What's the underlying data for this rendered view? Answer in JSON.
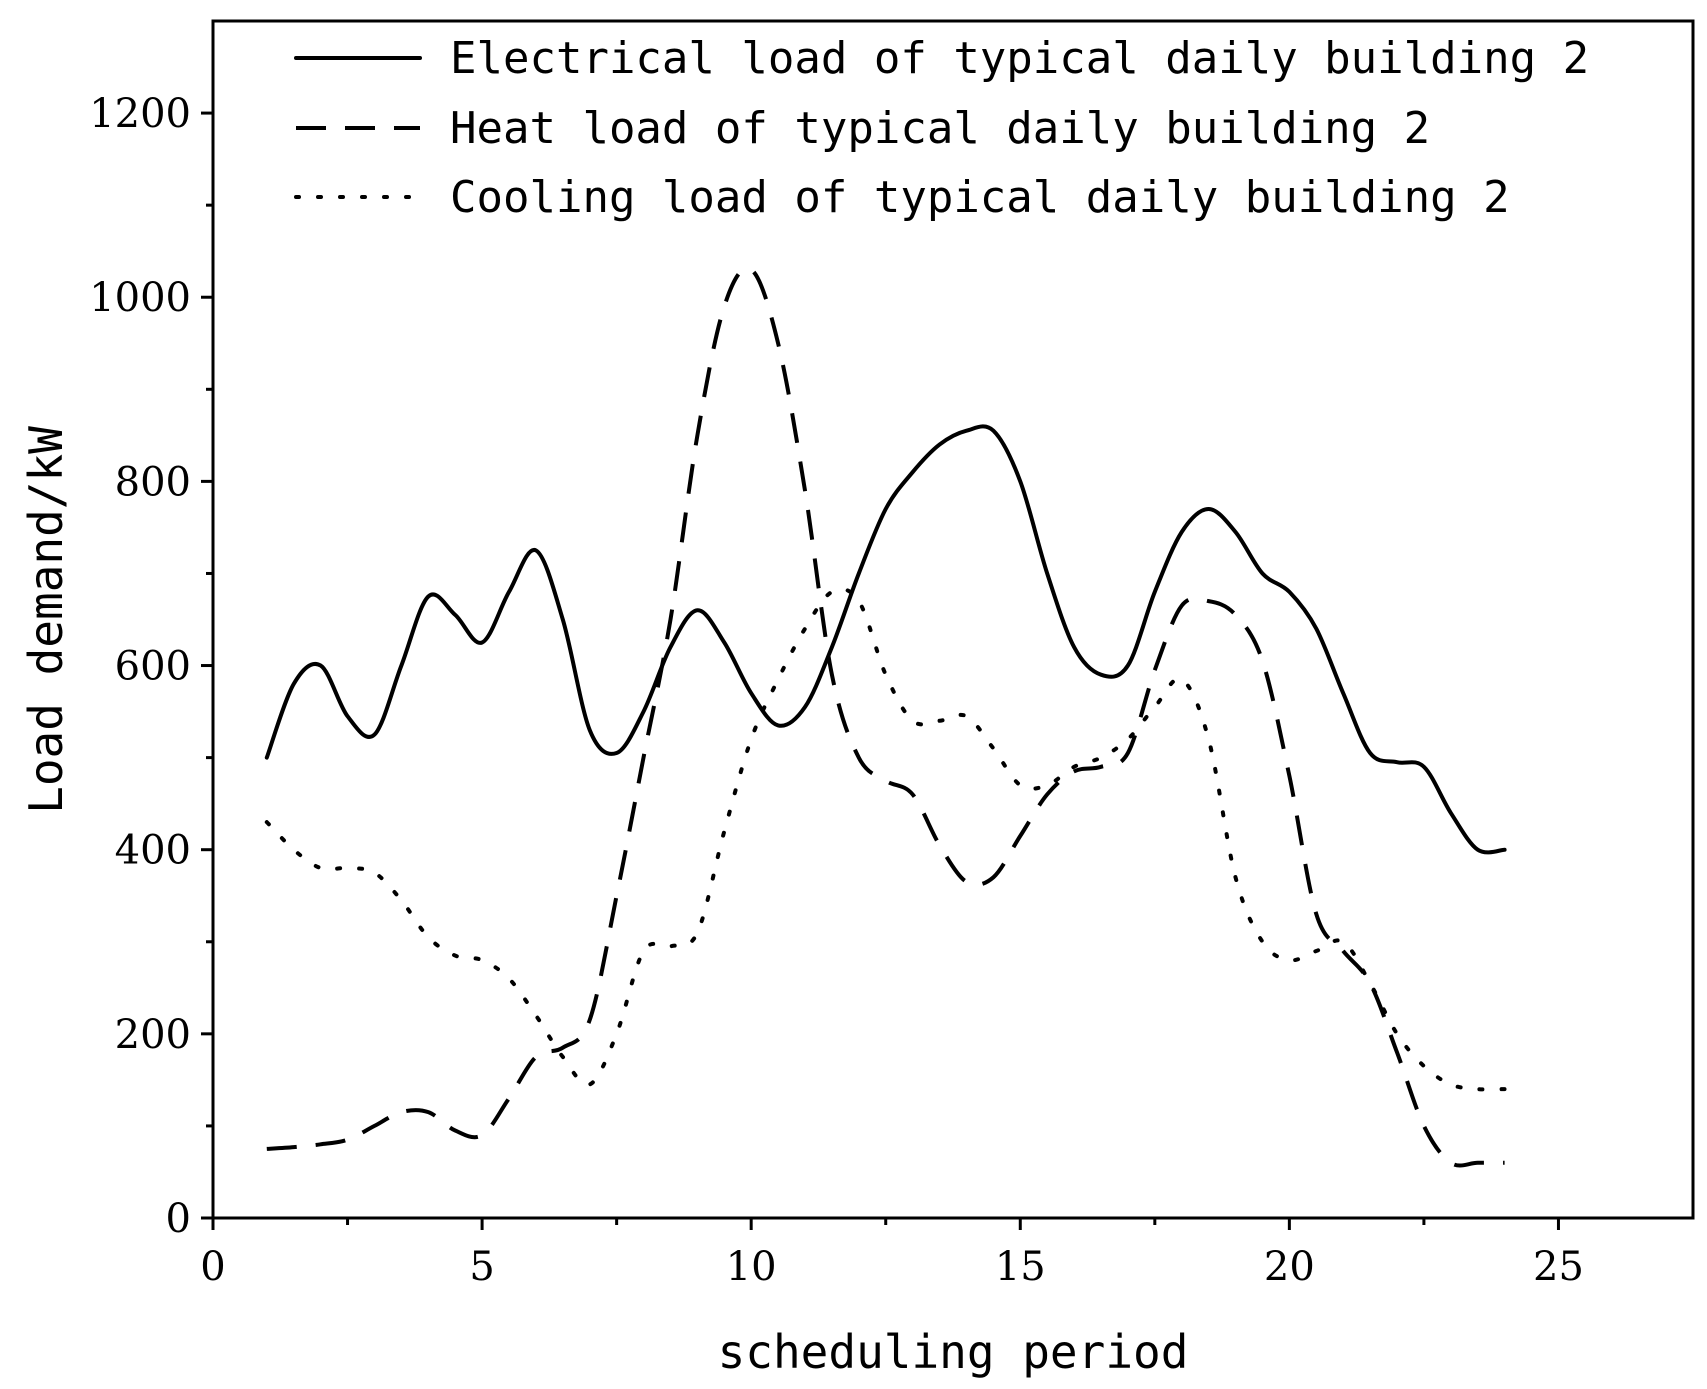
{
  "chart_data": {
    "type": "line",
    "title": "",
    "xlabel": "scheduling period",
    "ylabel": "Load demand/kW",
    "xlim": [
      0,
      27.5
    ],
    "ylim": [
      0,
      1300
    ],
    "xticks": [
      0,
      5,
      10,
      15,
      20,
      25
    ],
    "xtick_labels": [
      "0",
      "5",
      "10",
      "15",
      "20",
      "25"
    ],
    "yticks": [
      0,
      200,
      400,
      600,
      800,
      1000,
      1200
    ],
    "ytick_labels": [
      "0",
      "200",
      "400",
      "600",
      "800",
      "1000",
      "1200"
    ],
    "grid": false,
    "legend_position": "top-right",
    "x": [
      1,
      1.5,
      2,
      2.5,
      3,
      3.5,
      4,
      4.5,
      5,
      5.5,
      6,
      6.5,
      7,
      7.5,
      8,
      8.5,
      9,
      9.5,
      10,
      10.5,
      11,
      11.5,
      12,
      12.5,
      13,
      13.5,
      14,
      14.5,
      15,
      15.5,
      16,
      16.5,
      17,
      17.5,
      18,
      18.5,
      19,
      19.5,
      20,
      20.5,
      21,
      21.5,
      22,
      22.5,
      23,
      23.5,
      24
    ],
    "series": [
      {
        "name": "Electrical load of typical daily building 2",
        "style": "solid",
        "color": "#000000",
        "values": [
          500,
          580,
          600,
          545,
          525,
          600,
          675,
          655,
          625,
          680,
          725,
          650,
          530,
          505,
          550,
          620,
          660,
          625,
          570,
          535,
          555,
          620,
          700,
          770,
          810,
          840,
          855,
          855,
          800,
          700,
          620,
          590,
          600,
          680,
          745,
          770,
          745,
          700,
          680,
          640,
          570,
          505,
          495,
          490,
          440,
          400,
          400
        ]
      },
      {
        "name": "Heat load of typical daily building 2",
        "style": "dashed",
        "color": "#000000",
        "values": [
          75,
          77,
          80,
          85,
          100,
          115,
          115,
          95,
          90,
          130,
          175,
          185,
          215,
          350,
          500,
          650,
          850,
          990,
          1030,
          950,
          790,
          590,
          500,
          475,
          460,
          405,
          365,
          370,
          415,
          460,
          485,
          490,
          505,
          595,
          665,
          670,
          655,
          605,
          480,
          330,
          290,
          255,
          180,
          100,
          60,
          60,
          60
        ]
      },
      {
        "name": "Cooling load of typical daily building 2",
        "style": "dotted",
        "color": "#000000",
        "values": [
          430,
          400,
          380,
          380,
          375,
          345,
          305,
          285,
          280,
          260,
          220,
          175,
          145,
          200,
          290,
          295,
          310,
          420,
          520,
          585,
          640,
          680,
          670,
          590,
          540,
          540,
          545,
          510,
          470,
          470,
          490,
          500,
          520,
          555,
          585,
          520,
          370,
          300,
          280,
          290,
          300,
          255,
          200,
          165,
          145,
          140,
          140
        ]
      }
    ]
  }
}
